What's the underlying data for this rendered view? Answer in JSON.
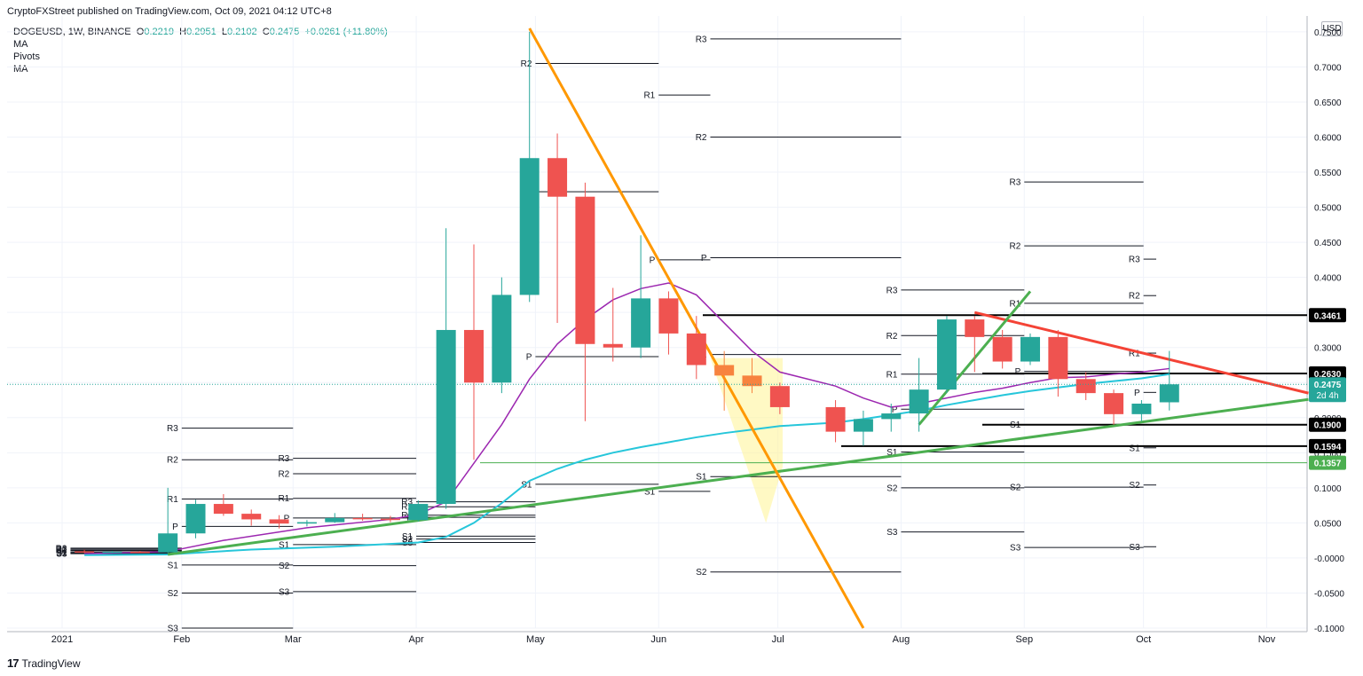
{
  "header": {
    "published": "CryptoFXStreet published on TradingView.com, Oct 09, 2021 04:12 UTC+8"
  },
  "legend": {
    "symbol": "DOGEUSD, 1W, BINANCE",
    "open_label": "O",
    "open": "0.2219",
    "high_label": "H",
    "high": "0.2951",
    "low_label": "L",
    "low": "0.2102",
    "close_label": "C",
    "close": "0.2475",
    "change": "+0.0261 (+11.80%)",
    "indicators": [
      "MA",
      "MA",
      "Pivots",
      "MA"
    ]
  },
  "currency": "USD",
  "footer": {
    "logo": "17",
    "brand": "TradingView"
  },
  "colors": {
    "up": "#26a69a",
    "down": "#ef5350",
    "orange_candle": "#f7833f",
    "ma_purple": "#9c27b0",
    "ma_cyan": "#26c6da",
    "trend_green": "#4caf50",
    "trend_orange": "#ff9800",
    "trend_red": "#f44336",
    "highlight": "#fff59d"
  },
  "chart_data": {
    "type": "candlestick",
    "symbol": "DOGEUSD",
    "interval": "1W",
    "ylim": [
      -0.1,
      0.76
    ],
    "y_ticks": [
      "0.7500",
      "0.7000",
      "0.6500",
      "0.6000",
      "0.5500",
      "0.5000",
      "0.4500",
      "0.4000",
      "0.3500",
      "0.3000",
      "0.2500",
      "0.2000",
      "0.1500",
      "0.1000",
      "0.0500",
      "-0.0000",
      "-0.0500",
      "-0.1000"
    ],
    "x_labels": [
      "2021",
      "Feb",
      "Mar",
      "Apr",
      "May",
      "Jun",
      "Jul",
      "Aug",
      "Sep",
      "Oct",
      "Nov"
    ],
    "candles": [
      {
        "week": "2021-01-04",
        "o": 0.0095,
        "h": 0.012,
        "l": 0.007,
        "c": 0.008,
        "color": "down"
      },
      {
        "week": "2021-01-11",
        "o": 0.008,
        "h": 0.01,
        "l": 0.007,
        "c": 0.009,
        "color": "up"
      },
      {
        "week": "2021-01-18",
        "o": 0.009,
        "h": 0.01,
        "l": 0.0075,
        "c": 0.008,
        "color": "down"
      },
      {
        "week": "2021-01-25",
        "o": 0.008,
        "h": 0.1,
        "l": 0.007,
        "c": 0.035,
        "color": "up"
      },
      {
        "week": "2021-02-01",
        "o": 0.035,
        "h": 0.083,
        "l": 0.028,
        "c": 0.077,
        "color": "up"
      },
      {
        "week": "2021-02-08",
        "o": 0.077,
        "h": 0.091,
        "l": 0.06,
        "c": 0.063,
        "color": "down"
      },
      {
        "week": "2021-02-15",
        "o": 0.063,
        "h": 0.069,
        "l": 0.046,
        "c": 0.055,
        "color": "down"
      },
      {
        "week": "2021-02-22",
        "o": 0.055,
        "h": 0.061,
        "l": 0.042,
        "c": 0.049,
        "color": "down"
      },
      {
        "week": "2021-03-01",
        "o": 0.049,
        "h": 0.054,
        "l": 0.045,
        "c": 0.051,
        "color": "up"
      },
      {
        "week": "2021-03-08",
        "o": 0.051,
        "h": 0.064,
        "l": 0.05,
        "c": 0.057,
        "color": "up"
      },
      {
        "week": "2021-03-15",
        "o": 0.057,
        "h": 0.063,
        "l": 0.053,
        "c": 0.056,
        "color": "down"
      },
      {
        "week": "2021-03-22",
        "o": 0.056,
        "h": 0.06,
        "l": 0.051,
        "c": 0.054,
        "color": "down"
      },
      {
        "week": "2021-03-29",
        "o": 0.054,
        "h": 0.082,
        "l": 0.052,
        "c": 0.077,
        "color": "up"
      },
      {
        "week": "2021-04-05",
        "o": 0.077,
        "h": 0.47,
        "l": 0.07,
        "c": 0.325,
        "color": "up"
      },
      {
        "week": "2021-04-12",
        "o": 0.325,
        "h": 0.447,
        "l": 0.14,
        "c": 0.25,
        "color": "down"
      },
      {
        "week": "2021-04-19",
        "o": 0.25,
        "h": 0.4,
        "l": 0.235,
        "c": 0.375,
        "color": "up"
      },
      {
        "week": "2021-04-26",
        "o": 0.375,
        "h": 0.75,
        "l": 0.365,
        "c": 0.57,
        "color": "up"
      },
      {
        "week": "2021-05-03",
        "o": 0.57,
        "h": 0.605,
        "l": 0.335,
        "c": 0.515,
        "color": "down"
      },
      {
        "week": "2021-05-10",
        "o": 0.515,
        "h": 0.535,
        "l": 0.195,
        "c": 0.305,
        "color": "down"
      },
      {
        "week": "2021-05-17",
        "o": 0.305,
        "h": 0.385,
        "l": 0.28,
        "c": 0.3,
        "color": "down"
      },
      {
        "week": "2021-05-24",
        "o": 0.3,
        "h": 0.46,
        "l": 0.285,
        "c": 0.37,
        "color": "up"
      },
      {
        "week": "2021-05-31",
        "o": 0.37,
        "h": 0.38,
        "l": 0.29,
        "c": 0.32,
        "color": "down"
      },
      {
        "week": "2021-06-07",
        "o": 0.32,
        "h": 0.345,
        "l": 0.255,
        "c": 0.275,
        "color": "down"
      },
      {
        "week": "2021-06-14",
        "o": 0.275,
        "h": 0.295,
        "l": 0.21,
        "c": 0.26,
        "color": "orange"
      },
      {
        "week": "2021-06-21",
        "o": 0.26,
        "h": 0.285,
        "l": 0.235,
        "c": 0.245,
        "color": "orange"
      },
      {
        "week": "2021-06-28",
        "o": 0.245,
        "h": 0.25,
        "l": 0.205,
        "c": 0.215,
        "color": "down"
      },
      {
        "week": "2021-07-12",
        "o": 0.215,
        "h": 0.225,
        "l": 0.165,
        "c": 0.18,
        "color": "down"
      },
      {
        "week": "2021-07-19",
        "o": 0.18,
        "h": 0.21,
        "l": 0.16,
        "c": 0.198,
        "color": "up"
      },
      {
        "week": "2021-07-26",
        "o": 0.198,
        "h": 0.22,
        "l": 0.18,
        "c": 0.206,
        "color": "up"
      },
      {
        "week": "2021-08-02",
        "o": 0.206,
        "h": 0.285,
        "l": 0.18,
        "c": 0.24,
        "color": "up"
      },
      {
        "week": "2021-08-09",
        "o": 0.24,
        "h": 0.345,
        "l": 0.235,
        "c": 0.34,
        "color": "up"
      },
      {
        "week": "2021-08-16",
        "o": 0.34,
        "h": 0.345,
        "l": 0.265,
        "c": 0.315,
        "color": "down"
      },
      {
        "week": "2021-08-23",
        "o": 0.315,
        "h": 0.325,
        "l": 0.27,
        "c": 0.28,
        "color": "down"
      },
      {
        "week": "2021-08-30",
        "o": 0.28,
        "h": 0.32,
        "l": 0.275,
        "c": 0.315,
        "color": "up"
      },
      {
        "week": "2021-09-06",
        "o": 0.315,
        "h": 0.325,
        "l": 0.23,
        "c": 0.255,
        "color": "down"
      },
      {
        "week": "2021-09-13",
        "o": 0.255,
        "h": 0.265,
        "l": 0.225,
        "c": 0.235,
        "color": "down"
      },
      {
        "week": "2021-09-20",
        "o": 0.235,
        "h": 0.24,
        "l": 0.19,
        "c": 0.205,
        "color": "down"
      },
      {
        "week": "2021-09-27",
        "o": 0.205,
        "h": 0.225,
        "l": 0.195,
        "c": 0.22,
        "color": "up"
      },
      {
        "week": "2021-10-04",
        "o": 0.2219,
        "h": 0.2951,
        "l": 0.2102,
        "c": 0.2475,
        "color": "up"
      }
    ],
    "horizontal_levels": [
      {
        "value": 0.3461,
        "label": "0.3461",
        "style": "black"
      },
      {
        "value": 0.263,
        "label": "0.2630",
        "style": "black"
      },
      {
        "value": 0.19,
        "label": "0.1900",
        "style": "black"
      },
      {
        "value": 0.1594,
        "label": "0.1594",
        "style": "black"
      },
      {
        "value": 0.1357,
        "label": "0.1357",
        "style": "green"
      }
    ],
    "current_price": {
      "value": 0.2475,
      "label": "0.2475",
      "countdown": "2d 4h"
    },
    "pivot_labels": [
      "R3",
      "R2",
      "R1",
      "P",
      "S1",
      "S2",
      "S3"
    ],
    "pivot_groups": [
      {
        "week": "2021-01-04",
        "P": 0.01,
        "R1": 0.011,
        "S1": 0.008,
        "R2": 0.0125,
        "S2": 0.007,
        "R3": 0.014,
        "S3": 0.006
      },
      {
        "week": "2021-02-01",
        "P": 0.045,
        "R1": 0.084,
        "S1": -0.01,
        "R2": 0.14,
        "S2": -0.05,
        "R3": 0.185,
        "S3": -0.1
      },
      {
        "week": "2021-03-01",
        "P": 0.057,
        "R1": 0.085,
        "S1": 0.019,
        "R2": 0.12,
        "S2": -0.011,
        "R3": 0.142,
        "S3": -0.048
      },
      {
        "week": "2021-04-01",
        "P": 0.058,
        "R1": 0.061,
        "S1": 0.031,
        "R2": 0.073,
        "S2": 0.027,
        "R3": 0.08,
        "S3": 0.022
      },
      {
        "week": "2021-05-01",
        "P": 0.287,
        "R1": 0.522,
        "S1": 0.105,
        "R2": 0.705
      },
      {
        "week": "2021-06-01",
        "P": 0.425,
        "R1": 0.66,
        "S1": 0.095
      },
      {
        "week": "2021-06-14",
        "P": 0.428,
        "R1": 0.29,
        "S1": 0.116,
        "R2": 0.6,
        "S2": -0.02,
        "R3": 0.74
      },
      {
        "week": "2021-08-01",
        "P": 0.212,
        "R1": 0.262,
        "S1": 0.151,
        "R2": 0.317,
        "S2": 0.1,
        "R3": 0.382,
        "S3": 0.037
      },
      {
        "week": "2021-09-01",
        "P": 0.266,
        "R1": 0.363,
        "S1": 0.19,
        "R2": 0.445,
        "S2": 0.101,
        "R3": 0.536,
        "S3": 0.015
      },
      {
        "week": "2021-10-01",
        "P": 0.236,
        "R1": 0.292,
        "S1": 0.157,
        "R2": 0.374,
        "S2": 0.104,
        "R3": 0.426,
        "S3": 0.016
      }
    ],
    "ma_purple": [
      [
        0,
        0.006
      ],
      [
        3,
        0.009
      ],
      [
        5,
        0.025
      ],
      [
        8,
        0.043
      ],
      [
        11,
        0.055
      ],
      [
        12,
        0.062
      ],
      [
        13,
        0.08
      ],
      [
        14,
        0.135
      ],
      [
        15,
        0.19
      ],
      [
        16,
        0.255
      ],
      [
        17,
        0.305
      ],
      [
        18,
        0.34
      ],
      [
        19,
        0.368
      ],
      [
        20,
        0.384
      ],
      [
        21,
        0.392
      ],
      [
        22,
        0.375
      ],
      [
        23,
        0.335
      ],
      [
        24,
        0.295
      ],
      [
        25,
        0.265
      ],
      [
        26,
        0.245
      ],
      [
        27,
        0.228
      ],
      [
        28,
        0.215
      ],
      [
        29,
        0.22
      ],
      [
        30,
        0.228
      ],
      [
        31,
        0.236
      ],
      [
        32,
        0.242
      ],
      [
        33,
        0.25
      ],
      [
        34,
        0.257
      ],
      [
        35,
        0.258
      ],
      [
        36,
        0.262
      ],
      [
        37,
        0.265
      ],
      [
        38,
        0.27
      ]
    ],
    "ma_cyan": [
      [
        0,
        0.004
      ],
      [
        3,
        0.005
      ],
      [
        6,
        0.012
      ],
      [
        9,
        0.016
      ],
      [
        12,
        0.022
      ],
      [
        13,
        0.03
      ],
      [
        14,
        0.05
      ],
      [
        15,
        0.078
      ],
      [
        16,
        0.11
      ],
      [
        17,
        0.127
      ],
      [
        18,
        0.14
      ],
      [
        19,
        0.15
      ],
      [
        20,
        0.158
      ],
      [
        21,
        0.165
      ],
      [
        22,
        0.172
      ],
      [
        23,
        0.178
      ],
      [
        24,
        0.183
      ],
      [
        25,
        0.188
      ],
      [
        26,
        0.193
      ],
      [
        27,
        0.198
      ],
      [
        28,
        0.204
      ],
      [
        29,
        0.21
      ],
      [
        30,
        0.218
      ],
      [
        31,
        0.225
      ],
      [
        32,
        0.232
      ],
      [
        33,
        0.238
      ],
      [
        34,
        0.243
      ],
      [
        35,
        0.248
      ],
      [
        36,
        0.252
      ],
      [
        37,
        0.256
      ],
      [
        38,
        0.262
      ]
    ],
    "trendlines": [
      {
        "name": "green support",
        "color": "#4caf50",
        "from": [
          "2021-01-25",
          0.005
        ],
        "to": [
          "2021-11-08",
          0.226
        ]
      },
      {
        "name": "orange downtrend",
        "color": "#ff9800",
        "from": [
          "2021-04-26",
          0.755
        ],
        "to": [
          "2021-07-19",
          -0.1
        ]
      },
      {
        "name": "red downtrend",
        "color": "#f44336",
        "from": [
          "2021-08-16",
          0.35
        ],
        "to": [
          "2021-11-08",
          0.235
        ]
      },
      {
        "name": "green uptrend",
        "color": "#4caf50",
        "from": [
          "2021-08-02",
          0.19
        ],
        "to": [
          "2021-08-30",
          0.38
        ]
      }
    ],
    "highlight_zone": {
      "from": [
        "2021-06-14",
        0.285
      ],
      "to": [
        "2021-06-28",
        0.05
      ]
    },
    "title": "",
    "xlabel": "",
    "ylabel": ""
  }
}
